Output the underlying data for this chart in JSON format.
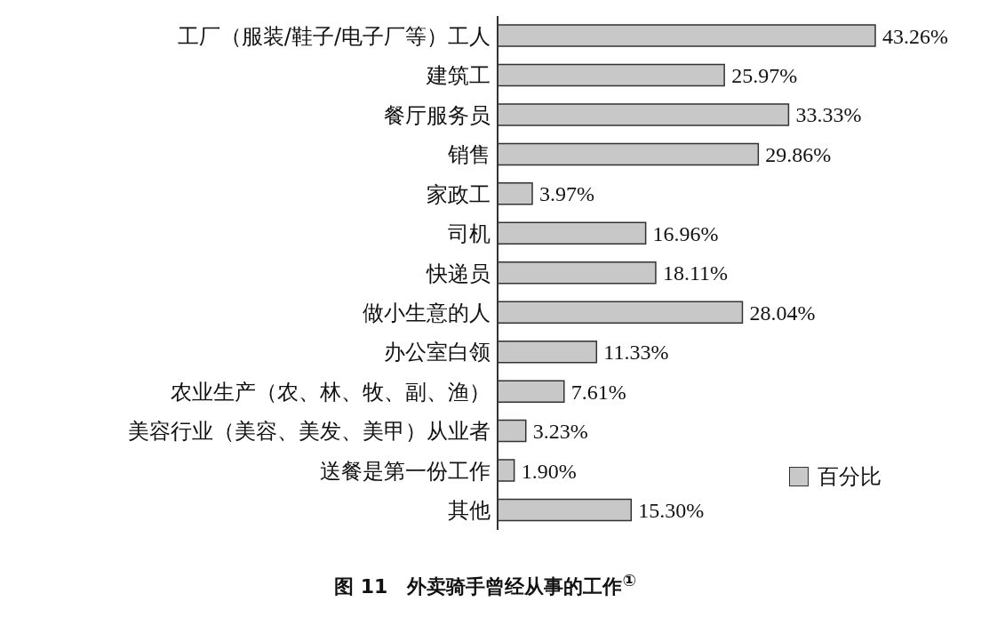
{
  "chart_data": {
    "type": "bar",
    "orientation": "horizontal",
    "title": "图 11　外卖骑手曾经从事的工作$^{①}$",
    "categories": [
      "工厂（服装/鞋子/电子厂等）工人",
      "建筑工",
      "餐厅服务员",
      "销售",
      "家政工",
      "司机",
      "快递员",
      "做小生意的人",
      "办公室白领",
      "农业生产（农、林、牧、副、渔）",
      "美容行业（美容、美发、美甲）从业者",
      "送餐是第一份工作",
      "其他"
    ],
    "series": [
      {
        "name": "百分比",
        "color": "#c8c8c8",
        "values": [
          43.26,
          25.97,
          33.33,
          29.86,
          3.97,
          16.96,
          18.11,
          28.04,
          11.33,
          7.61,
          3.23,
          1.9,
          15.3
        ],
        "value_labels": [
          "43.26%",
          "25.97%",
          "33.33%",
          "29.86%",
          "3.97%",
          "16.96%",
          "18.11%",
          "28.04%",
          "11.33%",
          "7.61%",
          "3.23%",
          "1.90%",
          "15.30%"
        ]
      }
    ],
    "legend": "bottom right"
  }
}
